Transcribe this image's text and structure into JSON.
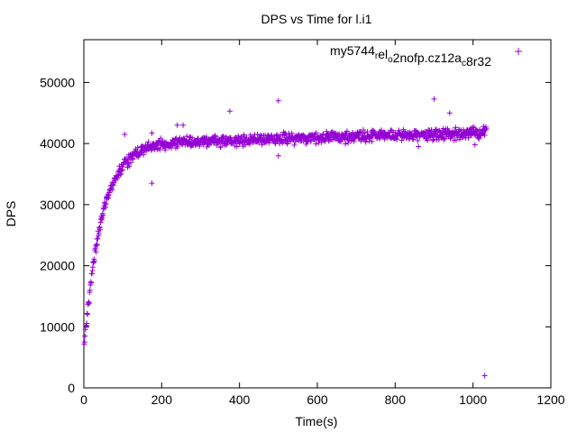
{
  "chart_data": {
    "type": "scatter",
    "title": "DPS vs Time for l.i1",
    "xlabel": "Time(s)",
    "ylabel": "DPS",
    "xlim": [
      0,
      1200
    ],
    "ylim": [
      0,
      57000
    ],
    "x_ticks": [
      0,
      200,
      400,
      600,
      800,
      1000,
      1200
    ],
    "y_ticks": [
      0,
      10000,
      20000,
      30000,
      40000,
      50000
    ],
    "grid": false,
    "legend_position": "top-right",
    "series": [
      {
        "name": "my5744_rel_o2nofp.cz12a_c8r32",
        "name_parts": [
          {
            "text": "my5744",
            "pos": "base"
          },
          {
            "text": "r",
            "pos": "sub"
          },
          {
            "text": "el",
            "pos": "base"
          },
          {
            "text": "o",
            "pos": "sub"
          },
          {
            "text": "2nofp.cz12a",
            "pos": "base"
          },
          {
            "text": "c",
            "pos": "sub"
          },
          {
            "text": "8r32",
            "pos": "base"
          }
        ],
        "color": "#9400d3",
        "marker": "plus",
        "growth_model": {
          "start": 6000,
          "plateau": 40000,
          "time_constant": 45,
          "late_slope_per_s": 3.5
        },
        "outliers": [
          {
            "x": 105,
            "y": 41500
          },
          {
            "x": 175,
            "y": 41700
          },
          {
            "x": 175,
            "y": 33500
          },
          {
            "x": 240,
            "y": 43000
          },
          {
            "x": 255,
            "y": 43000
          },
          {
            "x": 375,
            "y": 45300
          },
          {
            "x": 500,
            "y": 47000
          },
          {
            "x": 500,
            "y": 38000
          },
          {
            "x": 860,
            "y": 39500
          },
          {
            "x": 900,
            "y": 47300
          },
          {
            "x": 940,
            "y": 45000
          },
          {
            "x": 1005,
            "y": 39800
          },
          {
            "x": 1030,
            "y": 2000
          }
        ]
      }
    ]
  }
}
